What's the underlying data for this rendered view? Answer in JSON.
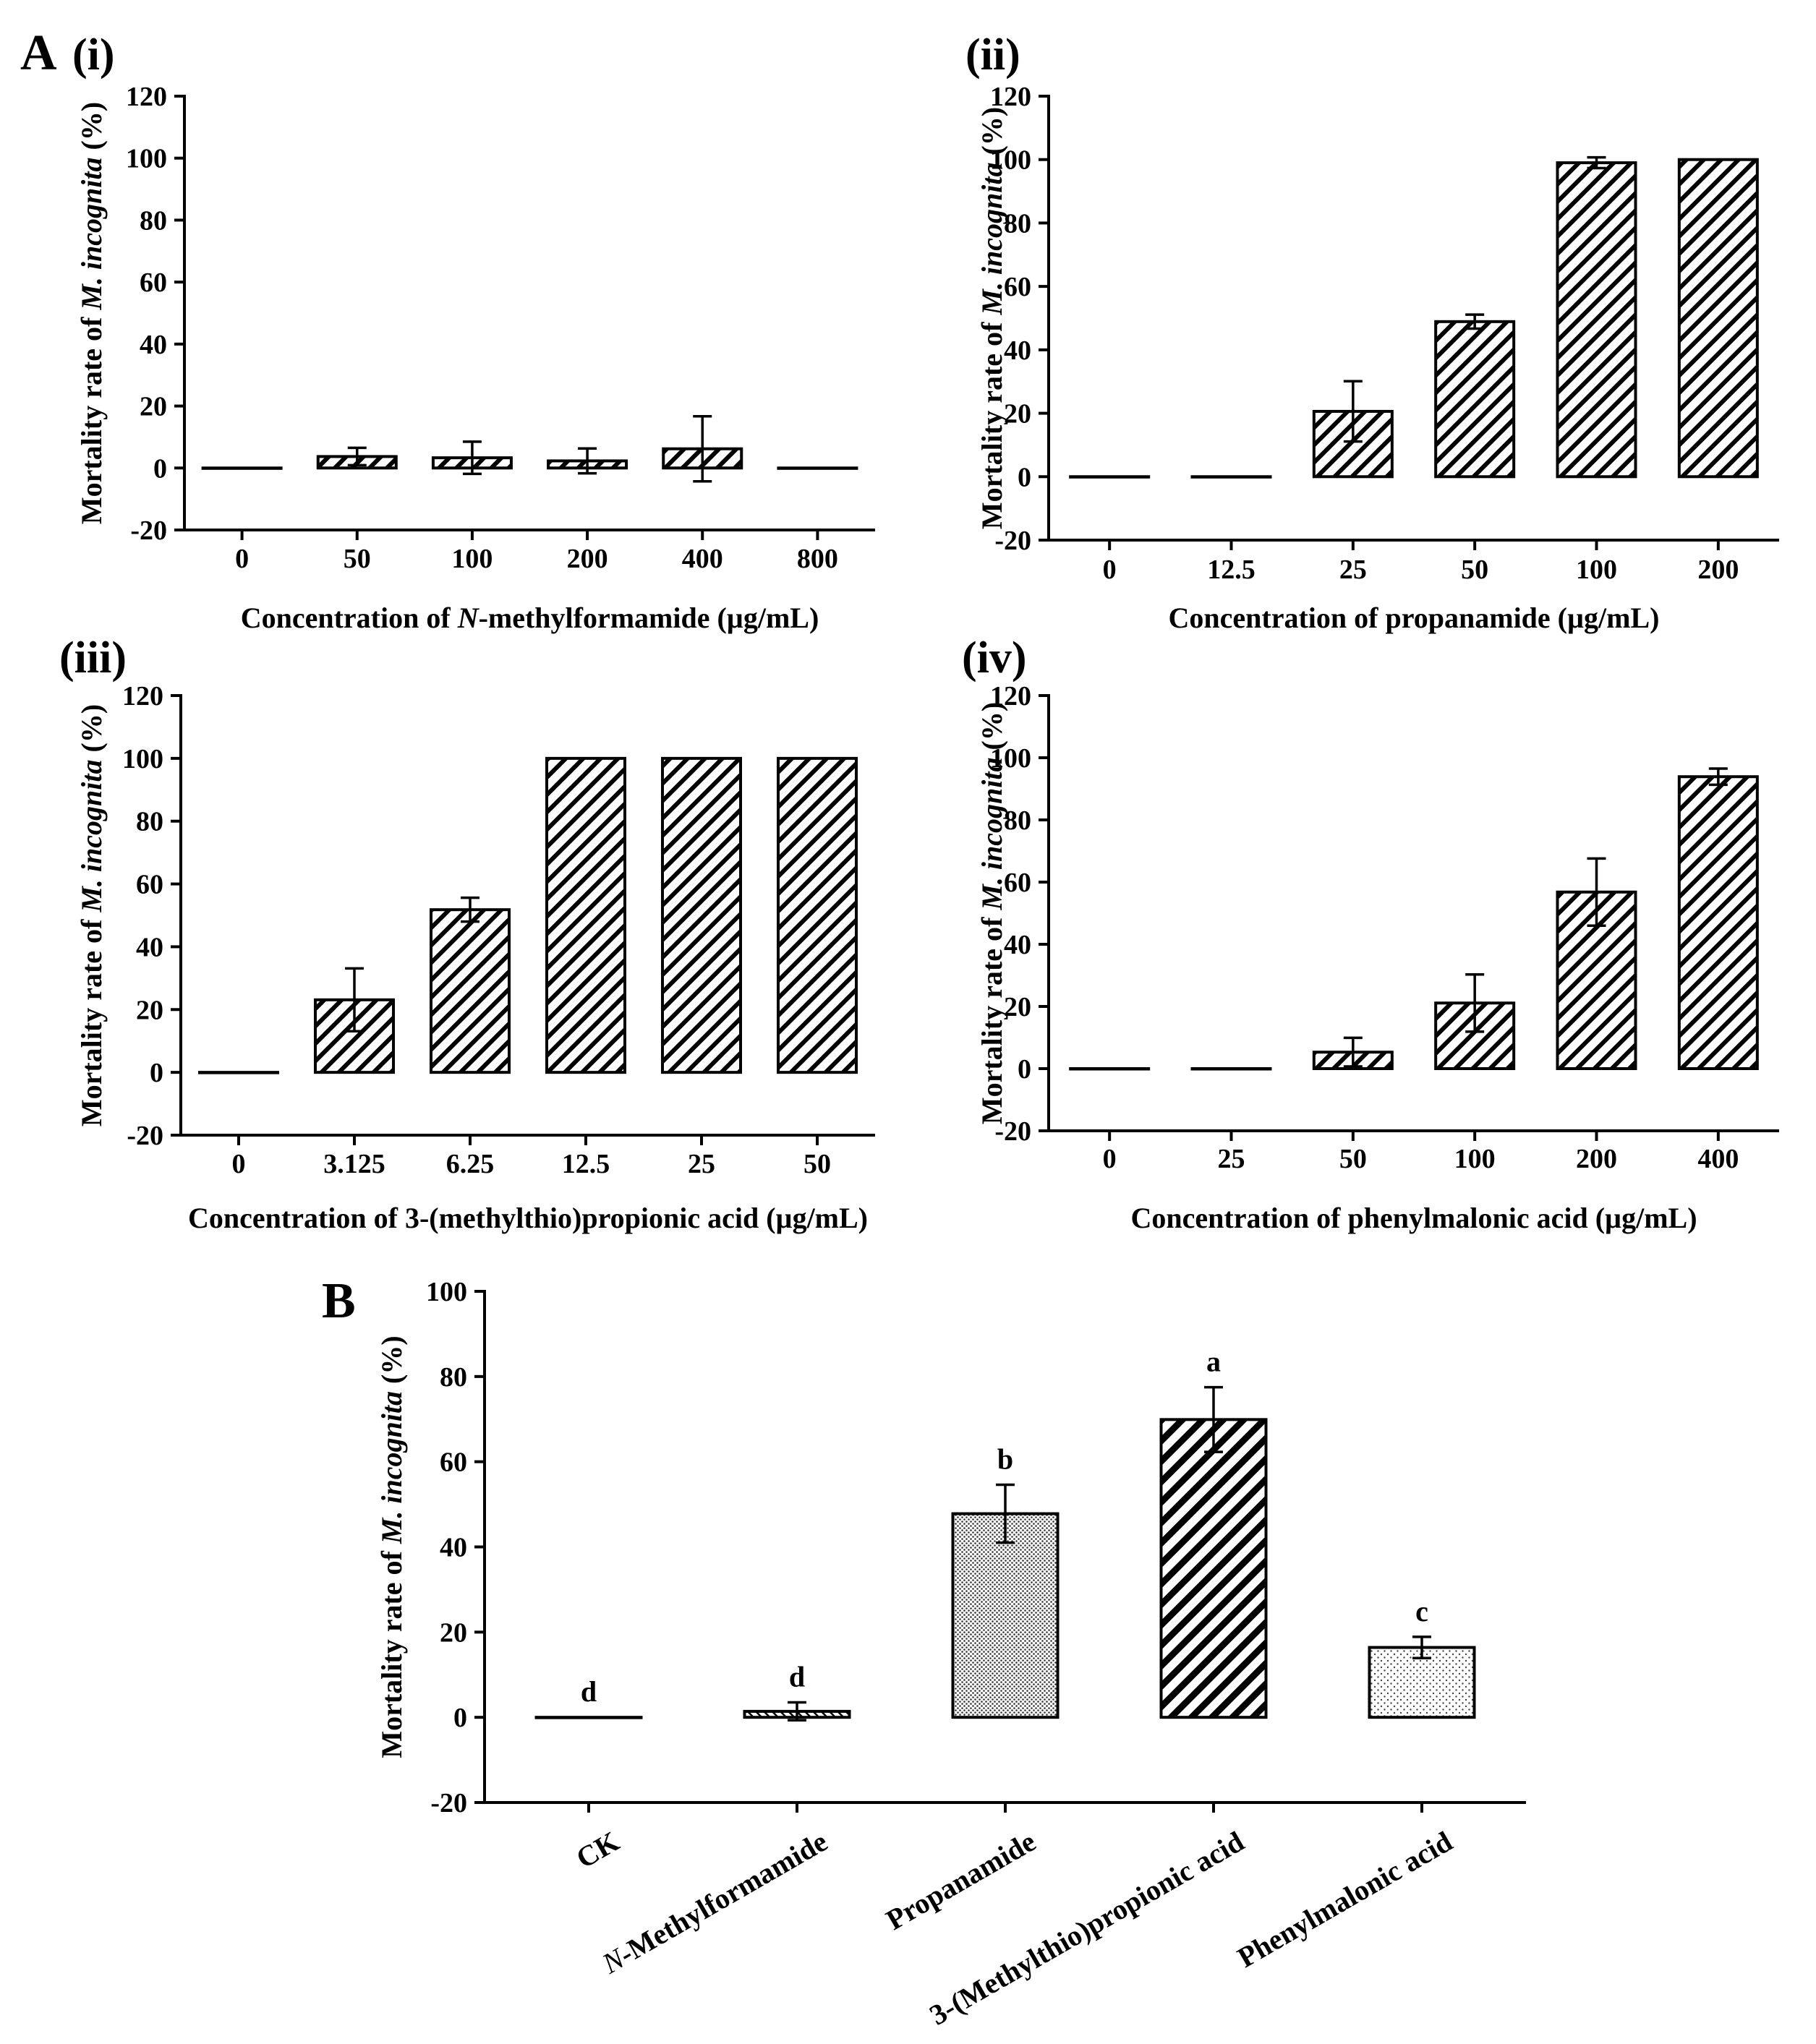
{
  "figure": {
    "panel_letters": [
      "A",
      "B"
    ]
  },
  "chart_data": [
    {
      "type": "bar",
      "panel": "(i)",
      "title": "",
      "xlabel_pre": "Concentration of ",
      "xlabel_ital": "N",
      "xlabel_post": "-methylformamide (µg/mL)",
      "ylabel_pre": "Mortality rate of ",
      "ylabel_ital": "M. incognita",
      "ylabel_post": " (%)",
      "categories": [
        "0",
        "50",
        "100",
        "200",
        "400",
        "800"
      ],
      "values": [
        0,
        3.7,
        3.3,
        2.3,
        6.2,
        0
      ],
      "errors": [
        0,
        2.8,
        5.2,
        4.0,
        10.5,
        0
      ],
      "fills": [
        "hatch",
        "hatch",
        "hatch",
        "hatch",
        "hatch",
        "hatch"
      ],
      "ylim": [
        -20,
        120
      ],
      "yticks": [
        -20,
        0,
        20,
        40,
        60,
        80,
        100,
        120
      ],
      "grid": false
    },
    {
      "type": "bar",
      "panel": "(ii)",
      "title": "",
      "xlabel_pre": "Concentration of propanamide (µg/mL)",
      "xlabel_ital": "",
      "xlabel_post": "",
      "ylabel_pre": "Mortality rate of ",
      "ylabel_ital": "M. incognita",
      "ylabel_post": " (%)",
      "categories": [
        "0",
        "12.5",
        "25",
        "50",
        "100",
        "200"
      ],
      "values": [
        0,
        0,
        20.6,
        48.9,
        99.0,
        100
      ],
      "errors": [
        0,
        0,
        9.5,
        2.2,
        1.7,
        0
      ],
      "fills": [
        "hatch",
        "hatch",
        "hatch",
        "hatch",
        "hatch",
        "hatch"
      ],
      "ylim": [
        -20,
        120
      ],
      "yticks": [
        -20,
        0,
        20,
        40,
        60,
        80,
        100,
        120
      ],
      "grid": false
    },
    {
      "type": "bar",
      "panel": "(iii)",
      "title": "",
      "xlabel_pre": "Concentration of 3-(methylthio)propionic acid (µg/mL)",
      "xlabel_ital": "",
      "xlabel_post": "",
      "ylabel_pre": "Mortality rate of ",
      "ylabel_ital": "M. incognita",
      "ylabel_post": " (%)",
      "categories": [
        "0",
        "3.125",
        "6.25",
        "12.5",
        "25",
        "50"
      ],
      "values": [
        0,
        23.1,
        51.8,
        100,
        100,
        100
      ],
      "errors": [
        0,
        10.0,
        3.8,
        0,
        0,
        0
      ],
      "fills": [
        "hatch",
        "hatch",
        "hatch",
        "hatch",
        "hatch",
        "hatch"
      ],
      "ylim": [
        -20,
        120
      ],
      "yticks": [
        -20,
        0,
        20,
        40,
        60,
        80,
        100,
        120
      ],
      "grid": false
    },
    {
      "type": "bar",
      "panel": "(iv)",
      "title": "",
      "xlabel_pre": "Concentration of phenylmalonic acid (µg/mL)",
      "xlabel_ital": "",
      "xlabel_post": "",
      "ylabel_pre": "Mortality rate of ",
      "ylabel_ital": "M. incognita",
      "ylabel_post": " (%)",
      "categories": [
        "0",
        "25",
        "50",
        "100",
        "200",
        "400"
      ],
      "values": [
        0,
        0,
        5.3,
        21.1,
        56.8,
        93.9
      ],
      "errors": [
        0,
        0,
        4.6,
        9.2,
        10.8,
        2.6
      ],
      "fills": [
        "hatch",
        "hatch",
        "hatch",
        "hatch",
        "hatch",
        "hatch"
      ],
      "ylim": [
        -20,
        120
      ],
      "yticks": [
        -20,
        0,
        20,
        40,
        60,
        80,
        100,
        120
      ],
      "grid": false
    },
    {
      "type": "bar",
      "panel": "",
      "title": "",
      "xlabel_pre": "",
      "xlabel_ital": "",
      "xlabel_post": "",
      "ylabel_pre": "Mortality rate of ",
      "ylabel_ital": "M. incognita",
      "ylabel_post": " (%)",
      "categories": [
        "CK",
        "N-Methylformamide",
        "Propanamide",
        "3-(Methylthio)propionic acid",
        "Phenylmalonic acid"
      ],
      "category_italic_prefix": [
        "",
        "N",
        "",
        "",
        ""
      ],
      "values": [
        0,
        1.4,
        47.8,
        69.9,
        16.4
      ],
      "errors": [
        0,
        2.1,
        6.8,
        7.6,
        2.5
      ],
      "significance": [
        "d",
        "d",
        "b",
        "a",
        "c"
      ],
      "fills": [
        "white",
        "fine-hatch",
        "dots-dense",
        "bold-hatch",
        "dots-sparse"
      ],
      "ylim": [
        -20,
        100
      ],
      "yticks": [
        -20,
        0,
        20,
        40,
        60,
        80,
        100
      ],
      "grid": false
    }
  ]
}
